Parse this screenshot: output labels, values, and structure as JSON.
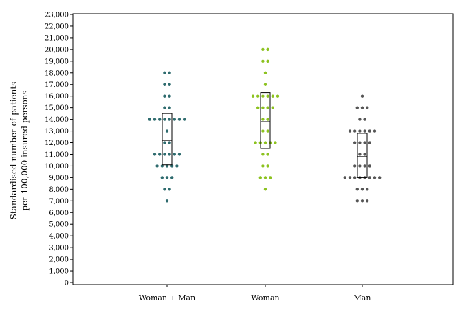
{
  "chart_data": {
    "type": "scatter",
    "subtype": "dot-strip with box (interquartile range and median)",
    "ylabel_line1": "Standardised number of patients",
    "ylabel_line2": "per 100,000 insured persons",
    "ylim": [
      0,
      23000
    ],
    "yticks": [
      0,
      1000,
      2000,
      3000,
      4000,
      5000,
      6000,
      7000,
      8000,
      9000,
      10000,
      11000,
      12000,
      13000,
      14000,
      15000,
      16000,
      17000,
      18000,
      19000,
      20000,
      21000,
      22000,
      23000
    ],
    "ytick_labels": [
      "0",
      "1,000",
      "2,000",
      "3,000",
      "4,000",
      "5,000",
      "6,000",
      "7,000",
      "8,000",
      "9,000",
      "10,000",
      "11,000",
      "12,000",
      "13,000",
      "14,000",
      "15,000",
      "16,000",
      "17,000",
      "18,000",
      "19,000",
      "20,000",
      "21,000",
      "22,000",
      "23,000"
    ],
    "categories": [
      "Woman + Man",
      "Woman",
      "Man"
    ],
    "grid": false,
    "legend": "none",
    "series": [
      {
        "color": "#2e6b6e",
        "values": [
          7000,
          8000,
          8000,
          9000,
          9000,
          9000,
          10000,
          10000,
          10000,
          10000,
          10000,
          11000,
          11000,
          11000,
          11000,
          11000,
          11000,
          12000,
          12000,
          13000,
          14000,
          14000,
          14000,
          14000,
          14000,
          14000,
          14000,
          14000,
          15000,
          15000,
          16000,
          16000,
          17000,
          17000,
          18000,
          18000
        ],
        "box": {
          "q1": 10100,
          "median": 12200,
          "q3": 14500
        }
      },
      {
        "color": "#8cc21f",
        "values": [
          8000,
          9000,
          9000,
          9000,
          10000,
          10000,
          11000,
          11000,
          12000,
          12000,
          12000,
          12000,
          12000,
          13000,
          13000,
          14000,
          14000,
          15000,
          15000,
          15000,
          15000,
          16000,
          16000,
          16000,
          16000,
          16000,
          16000,
          17000,
          18000,
          19000,
          19000,
          20000,
          20000
        ],
        "box": {
          "q1": 11500,
          "median": 13800,
          "q3": 16300
        }
      },
      {
        "color": "#555555",
        "values": [
          7000,
          7000,
          7000,
          8000,
          8000,
          8000,
          9000,
          9000,
          9000,
          9000,
          9000,
          9000,
          9000,
          9000,
          10000,
          10000,
          10000,
          10000,
          11000,
          11000,
          12000,
          12000,
          12000,
          12000,
          13000,
          13000,
          13000,
          13000,
          13000,
          13000,
          14000,
          14000,
          15000,
          15000,
          15000,
          16000
        ],
        "box": {
          "q1": 9000,
          "median": 10800,
          "q3": 12800
        }
      }
    ]
  }
}
